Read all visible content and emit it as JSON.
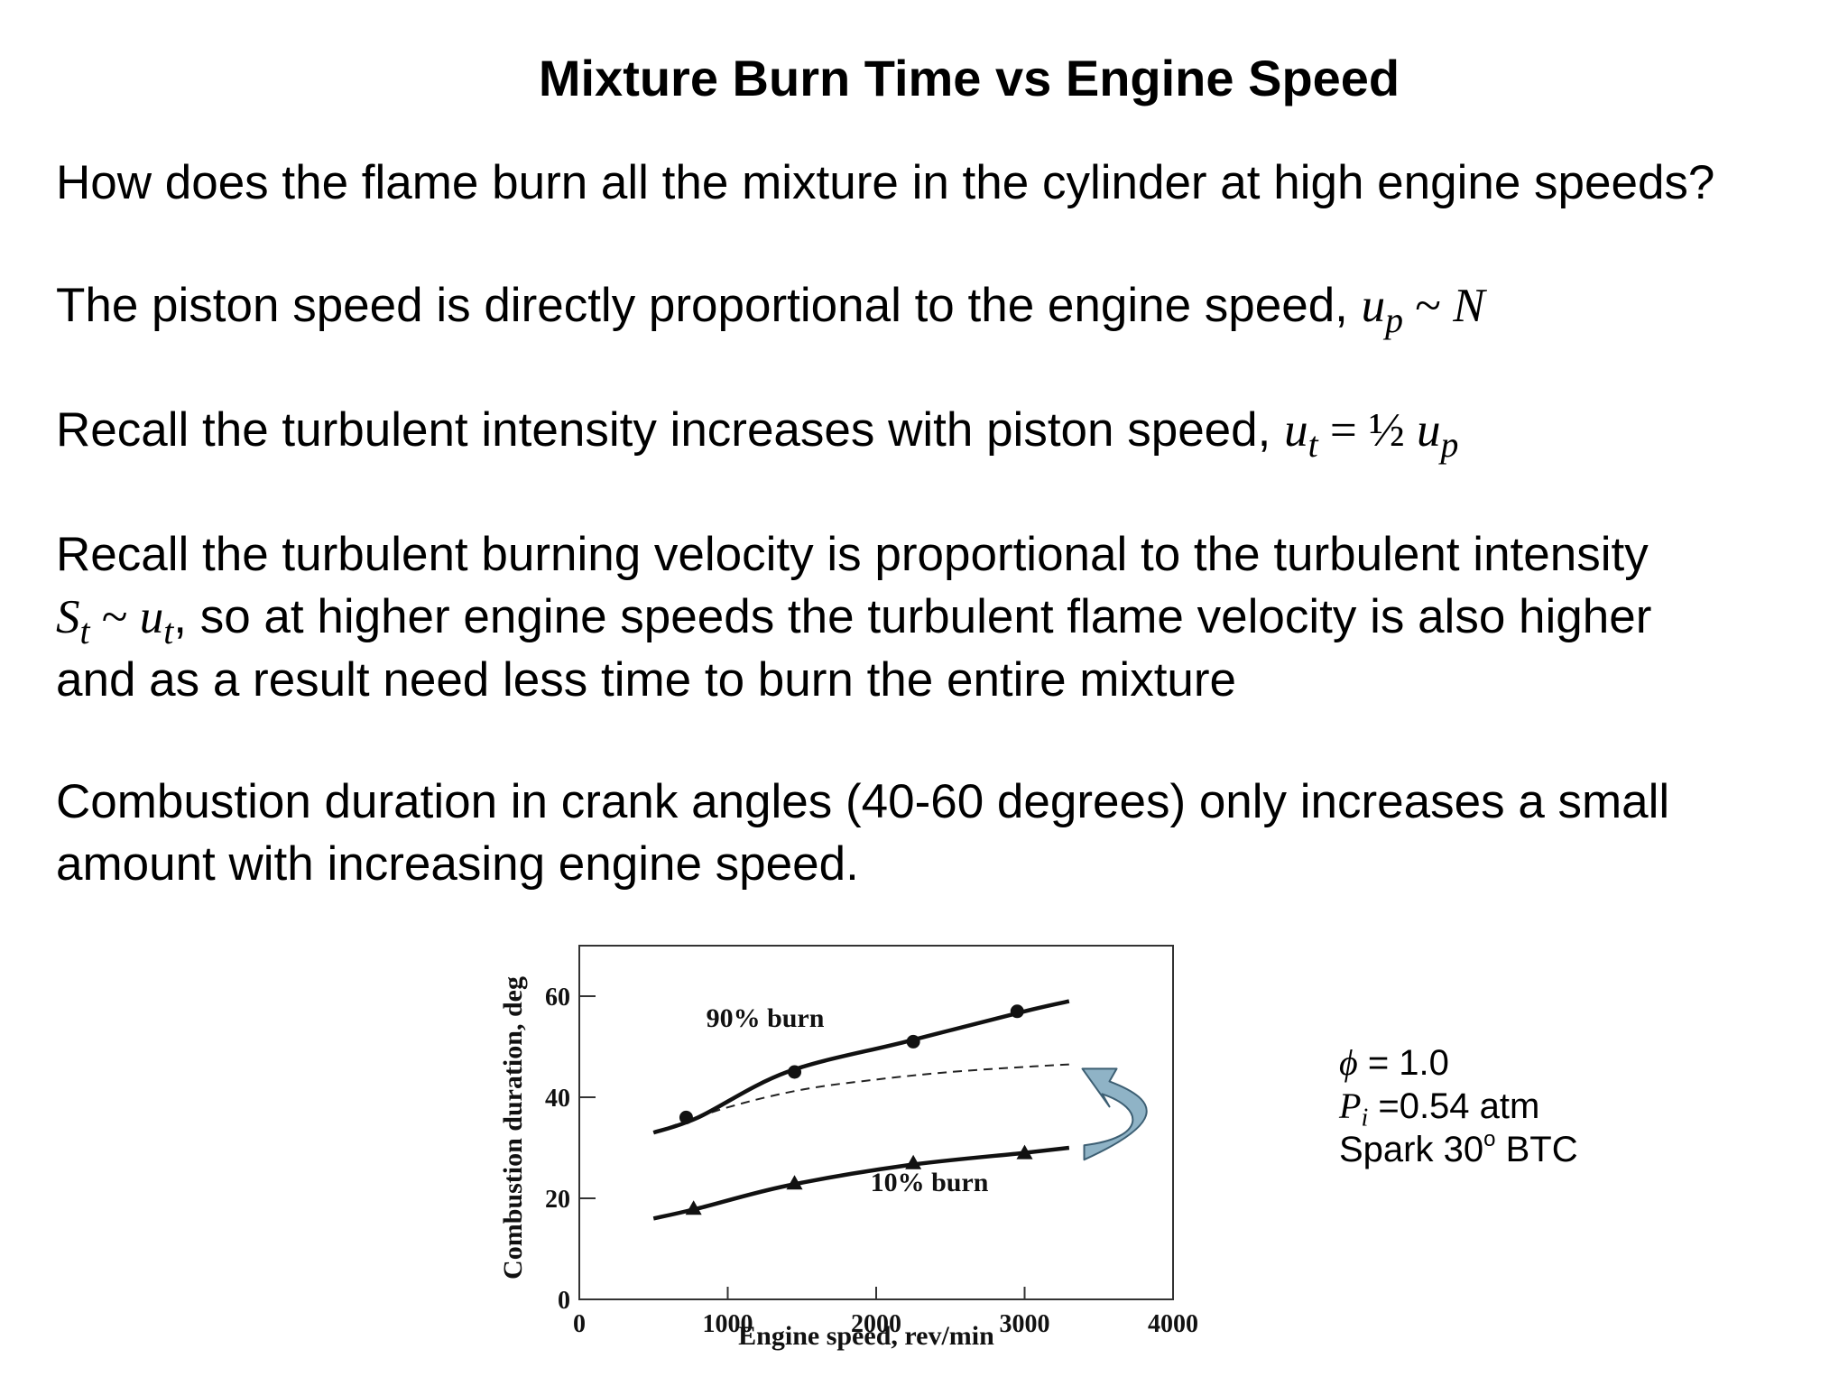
{
  "slide": {
    "title": "Mixture Burn Time vs Engine Speed",
    "p1": "How does the flame burn all the mixture in the cylinder at high engine speeds?",
    "p2": {
      "text": "The piston speed is directly proportional to the engine speed, ",
      "math_lhs": "u",
      "math_lhs_sub": "p",
      "math_op": " ~ ",
      "math_rhs": "N"
    },
    "p3": {
      "text": "Recall the turbulent intensity increases with piston speed, ",
      "math_lhs": "u",
      "math_lhs_sub": "t",
      "math_op": " = ½ ",
      "math_rhs": "u",
      "math_rhs_sub": "p"
    },
    "p4": {
      "line1": "Recall the turbulent burning velocity is proportional to the turbulent intensity",
      "math_lhs": "S",
      "math_lhs_sub": "t",
      "math_op": " ~ ",
      "math_rhs": "u",
      "math_rhs_sub": "t",
      "line2_rest": ", so at higher engine speeds the turbulent flame velocity is also higher",
      "line3": "and as a result need less time to burn the entire mixture"
    },
    "p5": {
      "line1": "Combustion duration in crank angles (40-60 degrees) only increases a small",
      "line2": "amount with increasing engine speed."
    }
  },
  "conditions": {
    "phi_symbol": "ϕ",
    "phi_value": " = 1.0",
    "pressure_symbol": "P",
    "pressure_sub": "i",
    "pressure_value": " =0.54 atm",
    "spark_text": "Spark 30",
    "spark_sup": "o",
    "spark_rest": " BTC"
  },
  "chart_data": {
    "type": "line",
    "xlabel": "Engine speed, rev/min",
    "ylabel": "Combustion duration, deg",
    "xlim": [
      0,
      4000
    ],
    "ylim": [
      0,
      70
    ],
    "x_ticks": [
      0,
      1000,
      2000,
      3000,
      4000
    ],
    "y_ticks": [
      0,
      20,
      40,
      60
    ],
    "grid": false,
    "series": [
      {
        "name": "90% burn",
        "marker": "circle",
        "points": [
          [
            500,
            33
          ],
          [
            800,
            36
          ],
          [
            1400,
            45
          ],
          [
            2200,
            51
          ],
          [
            3000,
            57
          ],
          [
            3300,
            59
          ]
        ],
        "data_points": [
          [
            720,
            36
          ],
          [
            1450,
            45
          ],
          [
            2250,
            51
          ],
          [
            2950,
            57
          ]
        ]
      },
      {
        "name": "10% burn",
        "marker": "triangle",
        "points": [
          [
            500,
            16
          ],
          [
            800,
            18
          ],
          [
            1400,
            22.5
          ],
          [
            2200,
            26.5
          ],
          [
            3000,
            29
          ],
          [
            3300,
            30
          ]
        ],
        "data_points": [
          [
            770,
            18
          ],
          [
            1450,
            23
          ],
          [
            2250,
            27
          ],
          [
            3000,
            29
          ]
        ]
      },
      {
        "dashed": true,
        "points": [
          [
            500,
            33
          ],
          [
            1000,
            38
          ],
          [
            1500,
            41.5
          ],
          [
            2000,
            43.5
          ],
          [
            2500,
            45
          ],
          [
            3000,
            46
          ],
          [
            3300,
            46.5
          ]
        ]
      }
    ],
    "arrow": {
      "color": "#8fb3c6",
      "meaning": "curved arrow from 10% burn curve end up toward dashed curve end"
    }
  }
}
